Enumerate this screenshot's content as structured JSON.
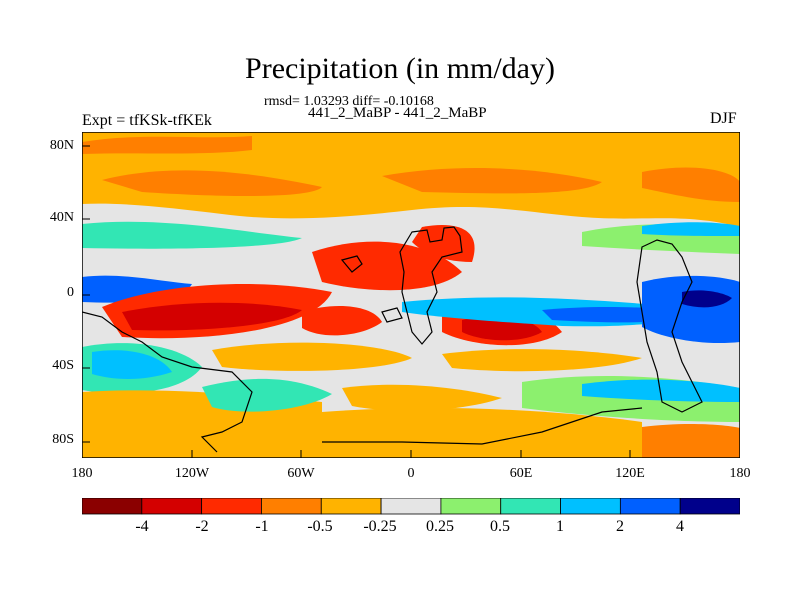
{
  "title": "Precipitation (in mm/day)",
  "stats": "rmsd= 1.03293 diff= -0.10168",
  "experiments": "441_2_MaBP - 441_2_MaBP",
  "expt_label": "Expt = tfKSk-tfKEk",
  "season": "DJF",
  "lat_ticks": [
    "80N",
    "40N",
    "0",
    "40S",
    "80S"
  ],
  "lon_ticks": [
    "180",
    "120W",
    "60W",
    "0",
    "60E",
    "120E",
    "180"
  ],
  "colorbar": {
    "colors": [
      "#8b0000",
      "#d40000",
      "#ff2a00",
      "#ff7f00",
      "#ffb300",
      "#e5e5e5",
      "#8cf06e",
      "#32e6b4",
      "#00c0ff",
      "#0060ff",
      "#00008b"
    ],
    "labels": [
      "-4",
      "-2",
      "-1",
      "-0.5",
      "-0.25",
      "0.25",
      "0.5",
      "1",
      "2",
      "4"
    ]
  }
}
